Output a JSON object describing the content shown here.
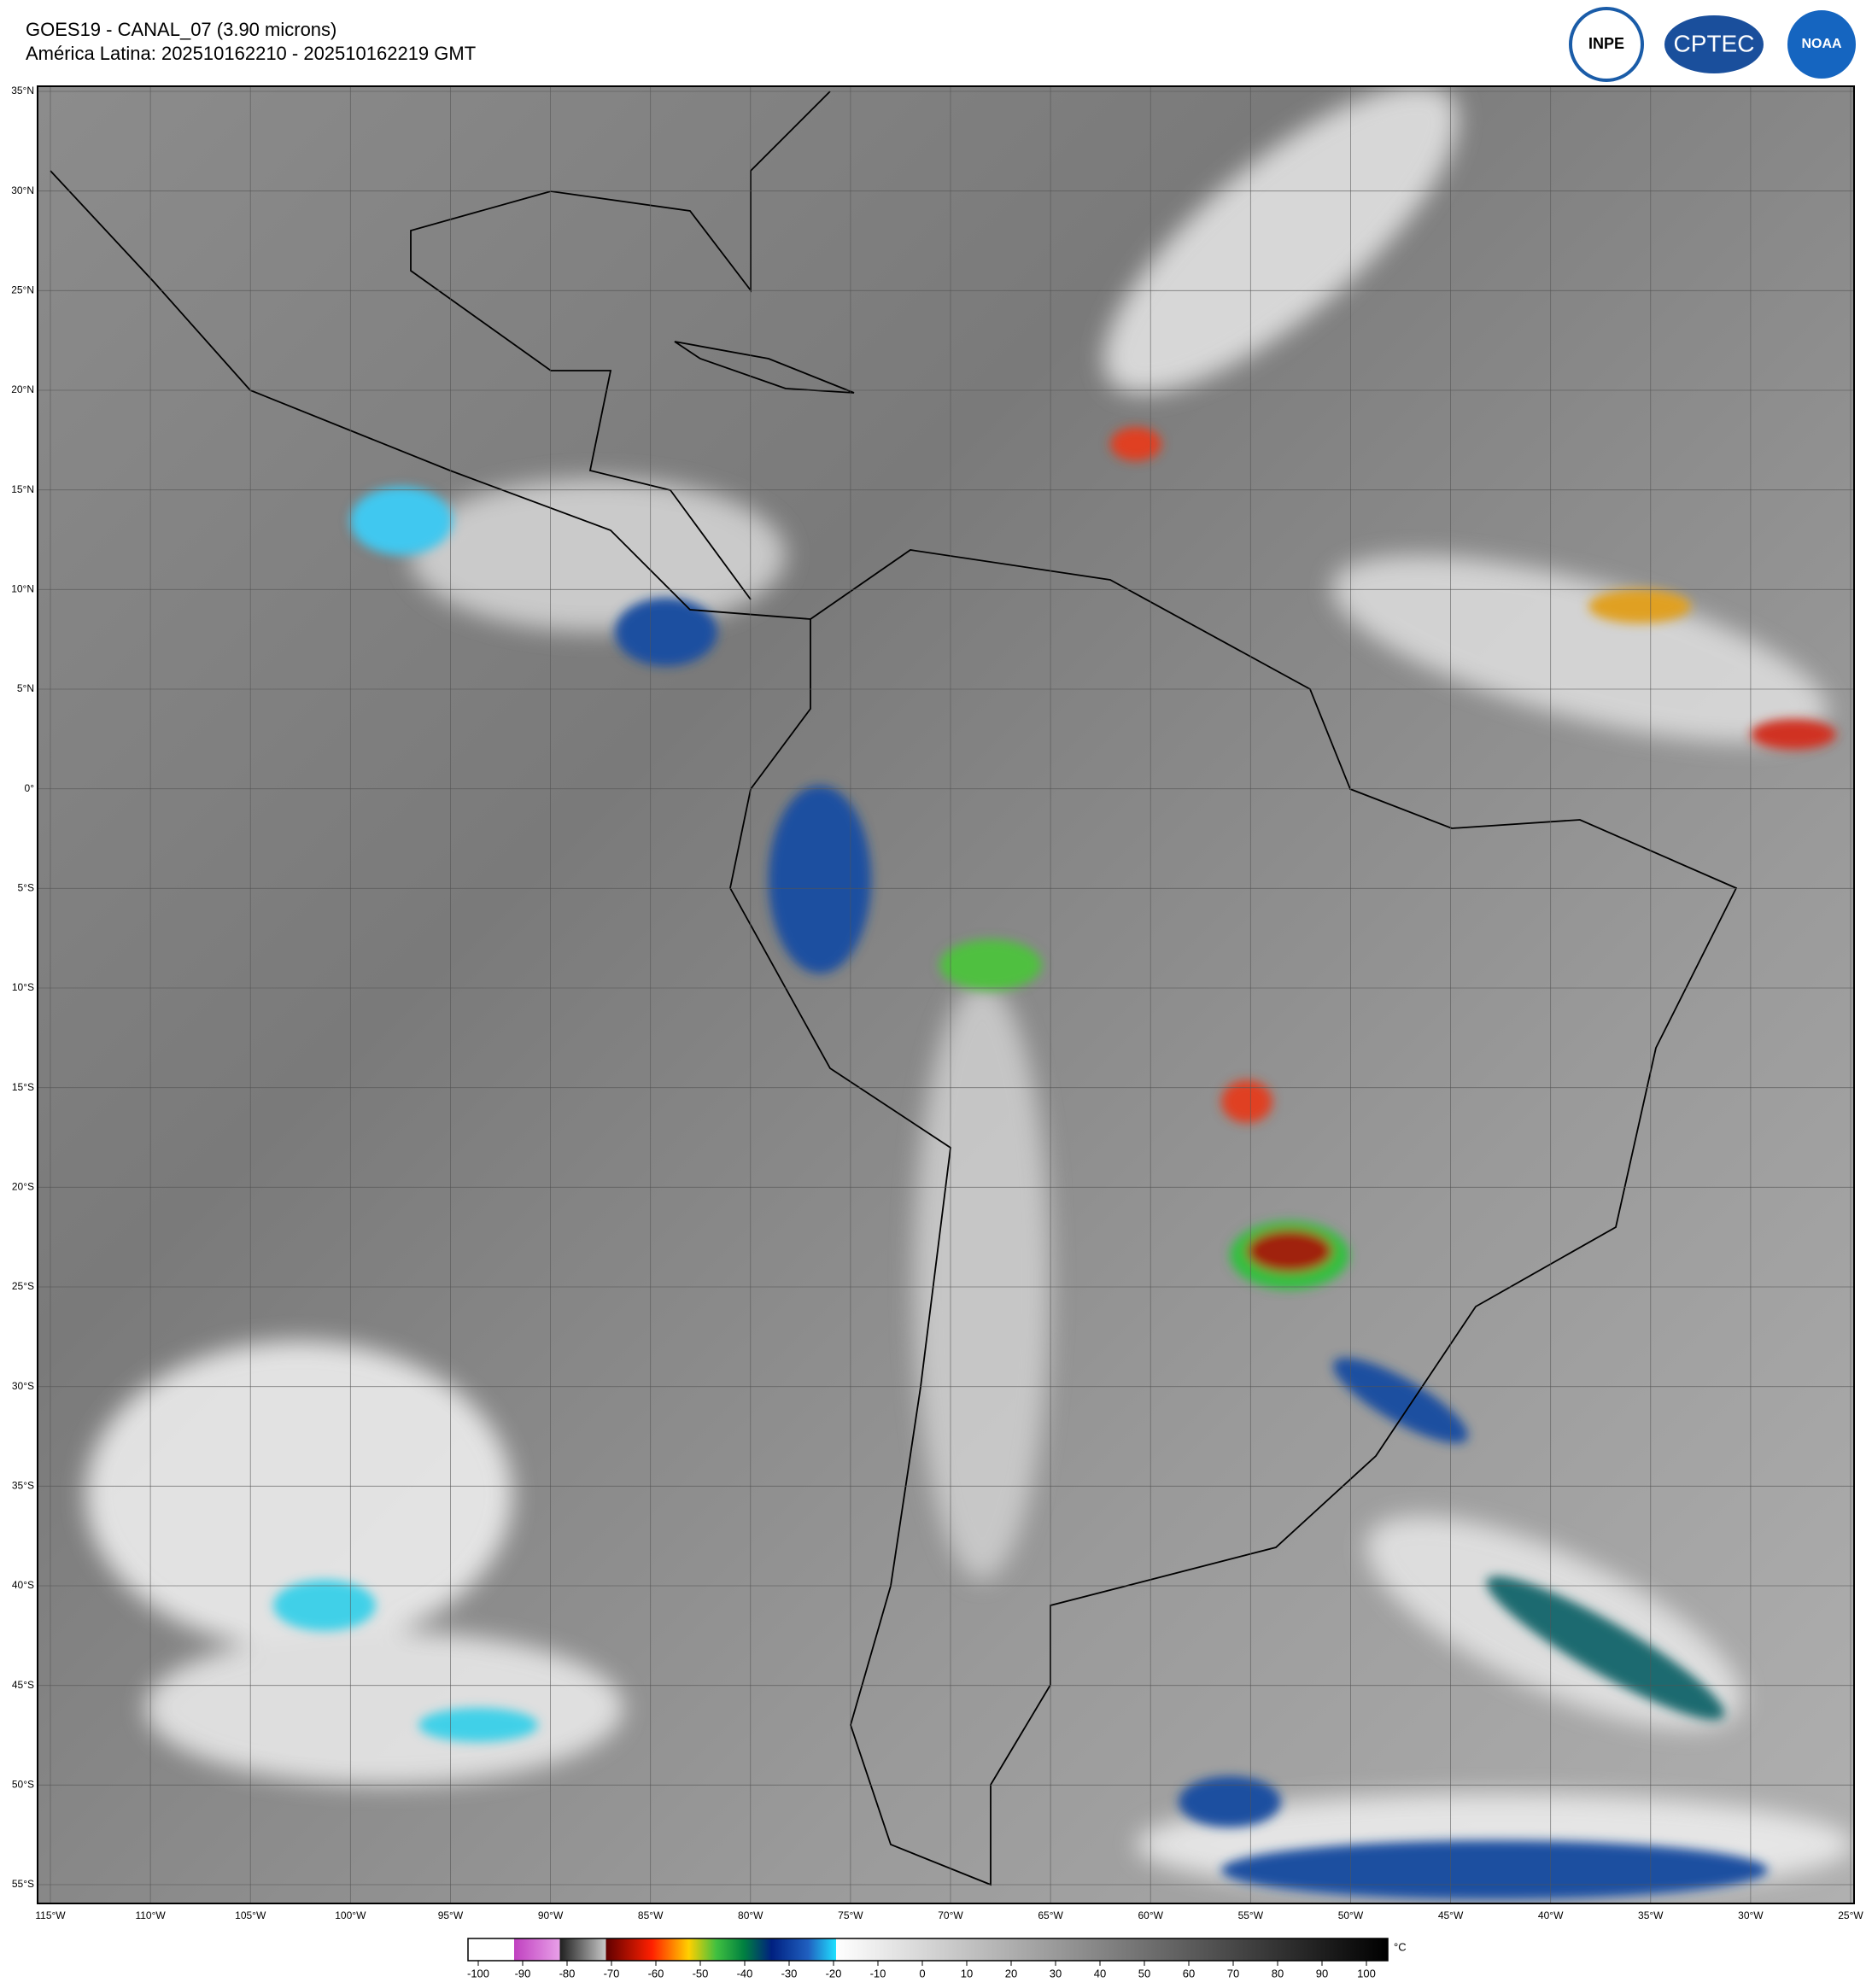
{
  "header": {
    "title": "GOES19 - CANAL_07 (3.90 microns)",
    "subtitle": "América Latina: 202510162210 - 202510162219 GMT"
  },
  "logos": [
    "INPE",
    "CPTEC",
    "NOAA"
  ],
  "map": {
    "lon_range": [
      -115,
      -25
    ],
    "lat_range": [
      35,
      -55
    ],
    "lat_ticks": [
      {
        "value": 35,
        "label": "35°N"
      },
      {
        "value": 30,
        "label": "30°N"
      },
      {
        "value": 25,
        "label": "25°N"
      },
      {
        "value": 20,
        "label": "20°N"
      },
      {
        "value": 15,
        "label": "15°N"
      },
      {
        "value": 10,
        "label": "10°N"
      },
      {
        "value": 5,
        "label": "5°N"
      },
      {
        "value": 0,
        "label": "0°"
      },
      {
        "value": -5,
        "label": "5°S"
      },
      {
        "value": -10,
        "label": "10°S"
      },
      {
        "value": -15,
        "label": "15°S"
      },
      {
        "value": -20,
        "label": "20°S"
      },
      {
        "value": -25,
        "label": "25°S"
      },
      {
        "value": -30,
        "label": "30°S"
      },
      {
        "value": -35,
        "label": "35°S"
      },
      {
        "value": -40,
        "label": "40°S"
      },
      {
        "value": -45,
        "label": "45°S"
      },
      {
        "value": -50,
        "label": "50°S"
      },
      {
        "value": -55,
        "label": "55°S"
      }
    ],
    "lon_ticks": [
      {
        "value": -115,
        "label": "115°W"
      },
      {
        "value": -110,
        "label": "110°W"
      },
      {
        "value": -105,
        "label": "105°W"
      },
      {
        "value": -100,
        "label": "100°W"
      },
      {
        "value": -95,
        "label": "95°W"
      },
      {
        "value": -90,
        "label": "90°W"
      },
      {
        "value": -85,
        "label": "85°W"
      },
      {
        "value": -80,
        "label": "80°W"
      },
      {
        "value": -75,
        "label": "75°W"
      },
      {
        "value": -70,
        "label": "70°W"
      },
      {
        "value": -65,
        "label": "65°W"
      },
      {
        "value": -60,
        "label": "60°W"
      },
      {
        "value": -55,
        "label": "55°W"
      },
      {
        "value": -50,
        "label": "50°W"
      },
      {
        "value": -45,
        "label": "45°W"
      },
      {
        "value": -40,
        "label": "40°W"
      },
      {
        "value": -35,
        "label": "35°W"
      },
      {
        "value": -30,
        "label": "30°W"
      },
      {
        "value": -25,
        "label": "25°W"
      }
    ]
  },
  "colorbar": {
    "unit": "°C",
    "range": [
      -100,
      100
    ],
    "ticks": [
      -100,
      -90,
      -80,
      -70,
      -60,
      -50,
      -40,
      -30,
      -20,
      -10,
      0,
      10,
      20,
      30,
      40,
      50,
      60,
      70,
      80,
      90,
      100
    ]
  }
}
